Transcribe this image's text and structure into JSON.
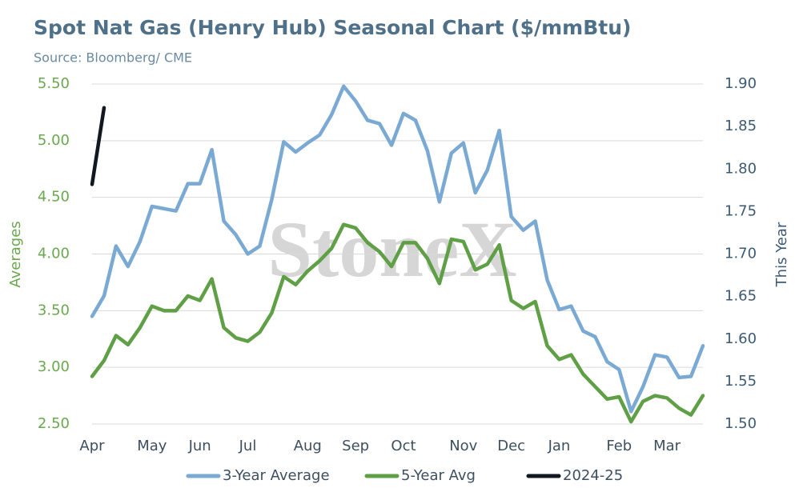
{
  "chart_data": {
    "type": "line",
    "title": "Spot Nat Gas (Henry Hub) Seasonal Chart ($/mmBtu)",
    "subtitle": "Source: Bloomberg/ CME",
    "watermark": "StoneX",
    "ylabel": "Averages",
    "y2label": "This Year",
    "categories": [
      "Apr",
      null,
      null,
      null,
      null,
      "May",
      null,
      null,
      null,
      "Jun",
      null,
      null,
      null,
      "Jul",
      null,
      null,
      null,
      null,
      "Aug",
      null,
      null,
      null,
      "Sep",
      null,
      null,
      null,
      "Oct",
      null,
      null,
      null,
      null,
      "Nov",
      null,
      null,
      null,
      "Dec",
      null,
      null,
      null,
      "Jan",
      null,
      null,
      null,
      null,
      "Feb",
      null,
      null,
      null,
      "Mar",
      null,
      null,
      null
    ],
    "ylim": [
      2.5,
      5.5
    ],
    "yticks": [
      {
        "value": 2.5,
        "label": "2.50"
      },
      {
        "value": 3.0,
        "label": "3.00"
      },
      {
        "value": 3.5,
        "label": "3.50"
      },
      {
        "value": 4.0,
        "label": "4.00"
      },
      {
        "value": 4.5,
        "label": "4.50"
      },
      {
        "value": 5.0,
        "label": "5.00"
      },
      {
        "value": 5.5,
        "label": "5.50"
      }
    ],
    "y2lim": [
      1.5,
      1.9
    ],
    "y2ticks": [
      {
        "value": 1.5,
        "label": "1.50"
      },
      1.55,
      {
        "value": 1.6,
        "label": "1.60"
      },
      1.65,
      {
        "value": 1.7,
        "label": "1.70"
      },
      1.75,
      {
        "value": 1.8,
        "label": "1.80"
      },
      1.85,
      {
        "value": 1.9,
        "label": "1.90"
      }
    ],
    "grid": true,
    "series": [
      {
        "name": "3-Year Average",
        "color": "#7aaad3",
        "values": [
          3.45,
          3.63,
          4.07,
          3.89,
          4.11,
          4.42,
          4.4,
          4.38,
          4.62,
          4.62,
          4.92,
          4.29,
          4.17,
          4.0,
          4.07,
          4.48,
          4.99,
          4.9,
          4.98,
          5.05,
          5.23,
          5.48,
          5.35,
          5.18,
          5.15,
          4.96,
          5.24,
          5.18,
          4.91,
          4.46,
          4.89,
          4.98,
          4.54,
          4.74,
          5.09,
          4.33,
          4.21,
          4.29,
          3.77,
          3.51,
          3.54,
          3.32,
          3.27,
          3.05,
          2.98,
          2.61,
          2.83,
          3.11,
          3.09,
          2.91,
          2.92,
          3.19
        ]
      },
      {
        "name": "5-Year Avg",
        "color": "#5f9f45",
        "values": [
          2.92,
          3.06,
          3.28,
          3.2,
          3.35,
          3.54,
          3.5,
          3.5,
          3.63,
          3.59,
          3.78,
          3.35,
          3.26,
          3.23,
          3.31,
          3.48,
          3.8,
          3.73,
          3.85,
          3.94,
          4.05,
          4.26,
          4.23,
          4.1,
          4.02,
          3.89,
          4.1,
          4.1,
          3.96,
          3.74,
          4.13,
          4.11,
          3.86,
          3.91,
          4.08,
          3.59,
          3.52,
          3.58,
          3.19,
          3.07,
          3.11,
          2.94,
          2.83,
          2.72,
          2.74,
          2.52,
          2.7,
          2.75,
          2.73,
          2.64,
          2.58,
          2.75
        ]
      },
      {
        "name": "2024-25",
        "color": "#111820",
        "axis": "y2",
        "values": [
          1.782,
          1.872,
          null,
          null,
          null,
          null,
          null,
          null,
          null,
          null,
          null,
          null,
          null,
          null,
          null,
          null,
          null,
          null,
          null,
          null,
          null,
          null,
          null,
          null,
          null,
          null,
          null,
          null,
          null,
          null,
          null,
          null,
          null,
          null,
          null,
          null,
          null,
          null,
          null,
          null,
          null,
          null,
          null,
          null,
          null,
          null,
          null,
          null,
          null,
          null,
          null,
          null
        ]
      }
    ]
  }
}
